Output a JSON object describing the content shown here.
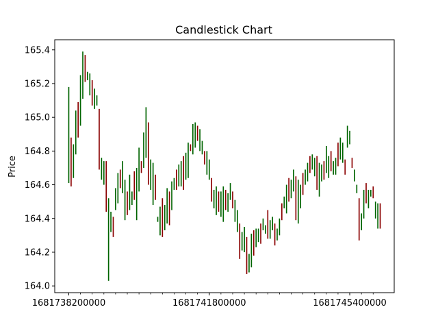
{
  "chart_data": {
    "type": "candlestick",
    "title": "Candlestick Chart",
    "xlabel": "",
    "ylabel": "Price",
    "ylim": [
      163.96,
      165.46
    ],
    "y_ticks": [
      164.0,
      164.2,
      164.4,
      164.6,
      164.8,
      165.0,
      165.2,
      165.4
    ],
    "y_tick_labels": [
      "164.0",
      "164.2",
      "164.4",
      "164.6",
      "164.8",
      "165.0",
      "165.2",
      "165.4"
    ],
    "x_ticks": [
      1681738200000,
      1681741800000,
      1681745400000
    ],
    "x_tick_labels": [
      "1681738200000",
      "1681741800000",
      "1681745400000"
    ],
    "x_minor_step": 300000,
    "x_start": 1681738200000,
    "x_step": 60000,
    "colors": {
      "up": "#006400",
      "down": "#8b0000"
    },
    "grid": false,
    "legend": "none",
    "candles": [
      [
        164.61,
        165.18
      ],
      [
        164.59,
        164.88
      ],
      [
        164.64,
        164.84
      ],
      [
        164.78,
        165.04
      ],
      [
        164.88,
        165.09
      ],
      [
        164.95,
        165.25
      ],
      [
        165.11,
        165.39
      ],
      [
        165.21,
        165.37
      ],
      [
        165.22,
        165.27
      ],
      [
        165.13,
        165.26
      ],
      [
        165.07,
        165.22
      ],
      [
        165.05,
        165.17
      ],
      [
        165.07,
        165.13
      ],
      [
        164.69,
        165.05
      ],
      [
        164.63,
        164.76
      ],
      [
        164.6,
        164.74
      ],
      [
        164.44,
        164.74
      ],
      [
        164.03,
        164.52
      ],
      [
        164.32,
        164.44
      ],
      [
        164.29,
        164.41
      ],
      [
        164.45,
        164.58
      ],
      [
        164.49,
        164.67
      ],
      [
        164.58,
        164.69
      ],
      [
        164.55,
        164.74
      ],
      [
        164.39,
        164.63
      ],
      [
        164.42,
        164.56
      ],
      [
        164.45,
        164.66
      ],
      [
        164.48,
        164.56
      ],
      [
        164.51,
        164.68
      ],
      [
        164.39,
        164.7
      ],
      [
        164.56,
        164.82
      ],
      [
        164.67,
        164.74
      ],
      [
        164.7,
        164.91
      ],
      [
        164.76,
        165.06
      ],
      [
        164.6,
        164.97
      ],
      [
        164.57,
        164.75
      ],
      [
        164.48,
        164.73
      ],
      [
        164.51,
        164.66
      ],
      [
        164.38,
        164.41
      ],
      [
        164.3,
        164.47
      ],
      [
        164.29,
        164.52
      ],
      [
        164.33,
        164.48
      ],
      [
        164.37,
        164.58
      ],
      [
        164.36,
        164.56
      ],
      [
        164.45,
        164.62
      ],
      [
        164.57,
        164.64
      ],
      [
        164.57,
        164.69
      ],
      [
        164.59,
        164.72
      ],
      [
        164.59,
        164.74
      ],
      [
        164.57,
        164.77
      ],
      [
        164.63,
        164.79
      ],
      [
        164.64,
        164.85
      ],
      [
        164.8,
        164.84
      ],
      [
        164.78,
        164.96
      ],
      [
        164.82,
        164.97
      ],
      [
        164.86,
        164.95
      ],
      [
        164.8,
        164.93
      ],
      [
        164.78,
        164.86
      ],
      [
        164.72,
        164.8
      ],
      [
        164.66,
        164.8
      ],
      [
        164.63,
        164.75
      ],
      [
        164.5,
        164.64
      ],
      [
        164.46,
        164.57
      ],
      [
        164.42,
        164.59
      ],
      [
        164.44,
        164.56
      ],
      [
        164.41,
        164.56
      ],
      [
        164.38,
        164.59
      ],
      [
        164.45,
        164.57
      ],
      [
        164.44,
        164.55
      ],
      [
        164.51,
        164.61
      ],
      [
        164.46,
        164.56
      ],
      [
        164.38,
        164.51
      ],
      [
        164.32,
        164.45
      ],
      [
        164.16,
        164.37
      ],
      [
        164.21,
        164.32
      ],
      [
        164.2,
        164.35
      ],
      [
        164.07,
        164.29
      ],
      [
        164.08,
        164.19
      ],
      [
        164.11,
        164.31
      ],
      [
        164.18,
        164.33
      ],
      [
        164.23,
        164.34
      ],
      [
        164.26,
        164.34
      ],
      [
        164.25,
        164.37
      ],
      [
        164.33,
        164.4
      ],
      [
        164.31,
        164.36
      ],
      [
        164.28,
        164.45
      ],
      [
        164.28,
        164.39
      ],
      [
        164.33,
        164.41
      ],
      [
        164.24,
        164.37
      ],
      [
        164.27,
        164.34
      ],
      [
        164.3,
        164.4
      ],
      [
        164.39,
        164.49
      ],
      [
        164.46,
        164.53
      ],
      [
        164.43,
        164.6
      ],
      [
        164.5,
        164.64
      ],
      [
        164.52,
        164.63
      ],
      [
        164.56,
        164.69
      ],
      [
        164.39,
        164.65
      ],
      [
        164.37,
        164.63
      ],
      [
        164.46,
        164.6
      ],
      [
        164.54,
        164.67
      ],
      [
        164.6,
        164.69
      ],
      [
        164.62,
        164.73
      ],
      [
        164.67,
        164.77
      ],
      [
        164.69,
        164.78
      ],
      [
        164.65,
        164.76
      ],
      [
        164.57,
        164.77
      ],
      [
        164.53,
        164.73
      ],
      [
        164.62,
        164.72
      ],
      [
        164.63,
        164.74
      ],
      [
        164.67,
        164.83
      ],
      [
        164.64,
        164.77
      ],
      [
        164.68,
        164.8
      ],
      [
        164.66,
        164.74
      ],
      [
        164.66,
        164.76
      ],
      [
        164.71,
        164.85
      ],
      [
        164.75,
        164.88
      ],
      [
        164.73,
        164.85
      ],
      [
        164.66,
        164.75
      ],
      [
        164.82,
        164.95
      ],
      [
        164.84,
        164.92
      ],
      [
        164.7,
        164.76
      ],
      [
        164.62,
        164.69
      ],
      [
        164.55,
        164.6
      ],
      [
        164.27,
        164.52
      ],
      [
        164.33,
        164.43
      ],
      [
        164.4,
        164.57
      ],
      [
        164.49,
        164.61
      ],
      [
        164.46,
        164.57
      ],
      [
        164.53,
        164.57
      ],
      [
        164.52,
        164.59
      ],
      [
        164.4,
        164.5
      ],
      [
        164.34,
        164.49
      ],
      [
        164.34,
        164.49
      ]
    ]
  }
}
